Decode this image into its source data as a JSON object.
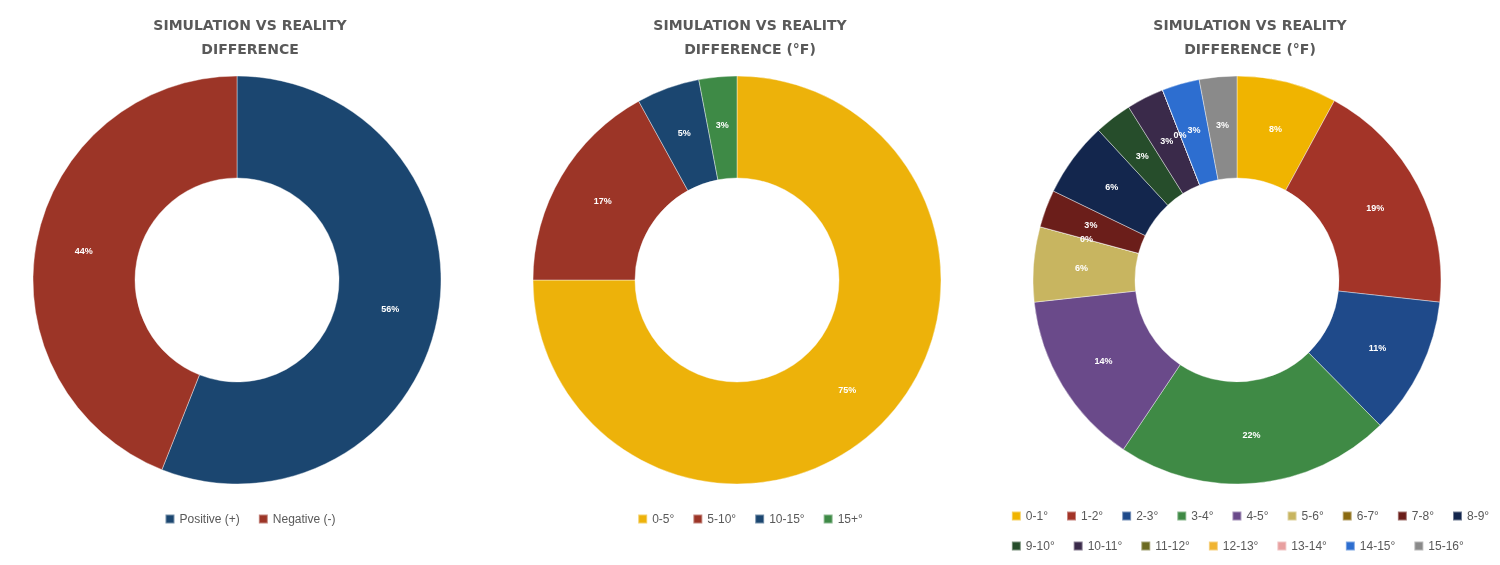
{
  "chart_data": [
    {
      "type": "donut",
      "title": "SIMULATION VS REALITY\nDIFFERENCE",
      "categories": [
        "Positive (+)",
        "Negative (-)"
      ],
      "values": [
        56,
        44
      ],
      "colors": [
        "#1b4670",
        "#9c3527"
      ],
      "value_labels": [
        "56%",
        "44%"
      ],
      "legend": "bottom"
    },
    {
      "type": "donut",
      "title": "SIMULATION VS REALITY\nDIFFERENCE (°F)",
      "categories": [
        "0-5°",
        "5-10°",
        "10-15°",
        "15+°"
      ],
      "values": [
        75,
        17,
        5,
        3
      ],
      "colors": [
        "#edb20a",
        "#9c3527",
        "#1b4670",
        "#3e8a46"
      ],
      "value_labels": [
        "75%",
        "17%",
        "5%",
        "3%"
      ],
      "legend": "bottom"
    },
    {
      "type": "donut",
      "title": "SIMULATION VS REALITY\nDIFFERENCE (°F)",
      "categories": [
        "0-1°",
        "1-2°",
        "2-3°",
        "3-4°",
        "4-5°",
        "5-6°",
        "6-7°",
        "7-8°",
        "8-9°",
        "9-10°",
        "10-11°",
        "11-12°",
        "12-13°",
        "13-14°",
        "14-15°",
        "15-16°"
      ],
      "values": [
        8,
        19,
        11,
        22,
        14,
        6,
        0,
        3,
        6,
        3,
        3,
        0,
        0,
        0,
        3,
        3
      ],
      "colors": [
        "#f0b400",
        "#a33428",
        "#1f4a8a",
        "#3f8a45",
        "#6a4a8a",
        "#c8b560",
        "#8a6a10",
        "#6b1e1a",
        "#13264d",
        "#264d2b",
        "#3a2a4a",
        "#6b6a20",
        "#f0b432",
        "#e8a0a0",
        "#2d6ed0",
        "#8a8a8a"
      ],
      "value_labels": [
        "8%",
        "19%",
        "11%",
        "22%",
        "14%",
        "6%",
        "0%",
        "3%",
        "6%",
        "3%",
        "3%",
        "0%",
        null,
        null,
        "3%",
        "3%"
      ],
      "legend": "bottom"
    }
  ]
}
